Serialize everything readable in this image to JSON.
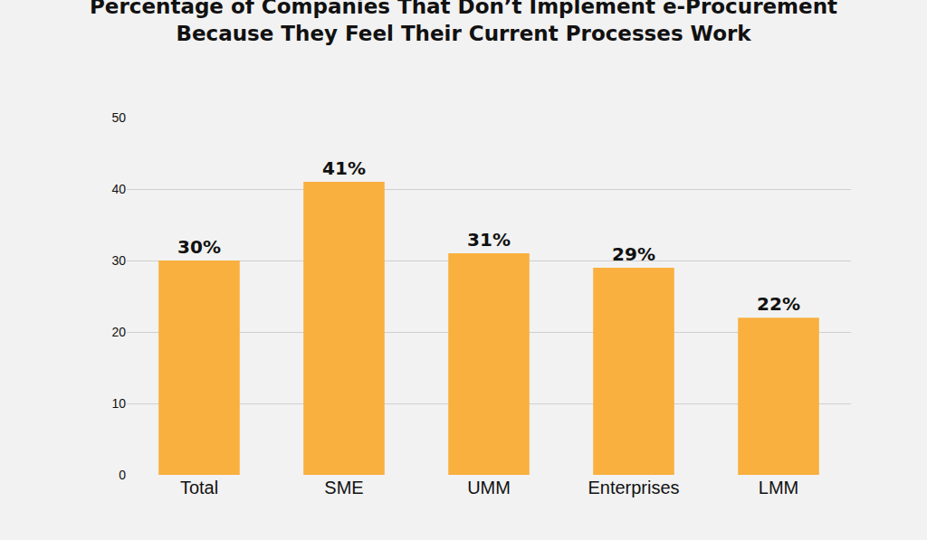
{
  "chart_data": {
    "type": "bar",
    "title": "Percentage of Companies That Don’t Implement e-Procurement Because They Feel Their Current Processes Work",
    "categories": [
      "Total",
      "SME",
      "UMM",
      "Enterprises",
      "LMM"
    ],
    "values": [
      30,
      41,
      31,
      29,
      22
    ],
    "value_labels": [
      "30%",
      "41%",
      "31%",
      "29%",
      "22%"
    ],
    "data_labels": true,
    "color": "#f9b03f",
    "ylim": [
      0,
      50
    ],
    "yticks": [
      0,
      10,
      20,
      30,
      40,
      50
    ],
    "grid": true
  }
}
